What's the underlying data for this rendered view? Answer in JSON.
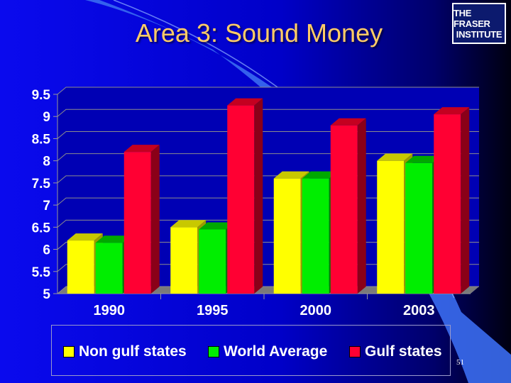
{
  "slide": {
    "title": "Area 3: Sound Money",
    "logo_line1": "THE FRASER",
    "logo_line2": "INSTITUTE",
    "page_number": "51"
  },
  "colors": {
    "background": "#0000cc",
    "title": "#ffcc66",
    "non_gulf": "#ffff00",
    "world": "#00ee00",
    "gulf": "#ff0033"
  },
  "chart_data": {
    "type": "bar",
    "title": "",
    "xlabel": "",
    "ylabel": "",
    "categories": [
      "1990",
      "1995",
      "2000",
      "2003"
    ],
    "ylim": [
      5,
      9.5
    ],
    "yticks": [
      "5",
      "5.5",
      "6",
      "6.5",
      "7",
      "7.5",
      "8",
      "8.5",
      "9",
      "9.5"
    ],
    "grid": true,
    "legend_position": "bottom",
    "series": [
      {
        "name": "Non gulf states",
        "values": [
          6.2,
          6.5,
          7.6,
          8.0
        ]
      },
      {
        "name": "World Average",
        "values": [
          6.15,
          6.45,
          7.6,
          7.95
        ]
      },
      {
        "name": "Gulf states",
        "values": [
          8.2,
          9.25,
          8.8,
          9.05
        ]
      }
    ]
  }
}
